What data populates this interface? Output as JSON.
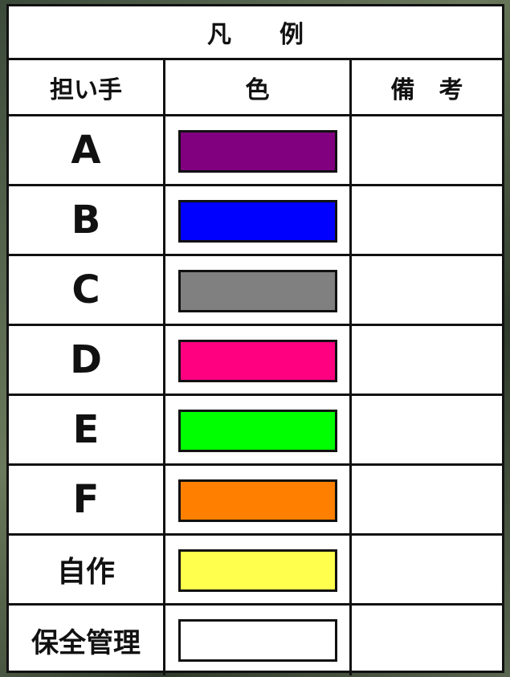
{
  "legend": {
    "title": "凡　　例",
    "headers": [
      "担い手",
      "色",
      "備　考"
    ],
    "rows": [
      {
        "label": "A",
        "color": "#800080"
      },
      {
        "label": "B",
        "color": "#0000ff"
      },
      {
        "label": "C",
        "color": "#808080"
      },
      {
        "label": "D",
        "color": "#ff0080"
      },
      {
        "label": "E",
        "color": "#00ff00"
      },
      {
        "label": "F",
        "color": "#ff8000"
      },
      {
        "label": "自作",
        "color": "#ffff4d"
      },
      {
        "label": "保全管理",
        "color": "#ffffff"
      }
    ]
  }
}
